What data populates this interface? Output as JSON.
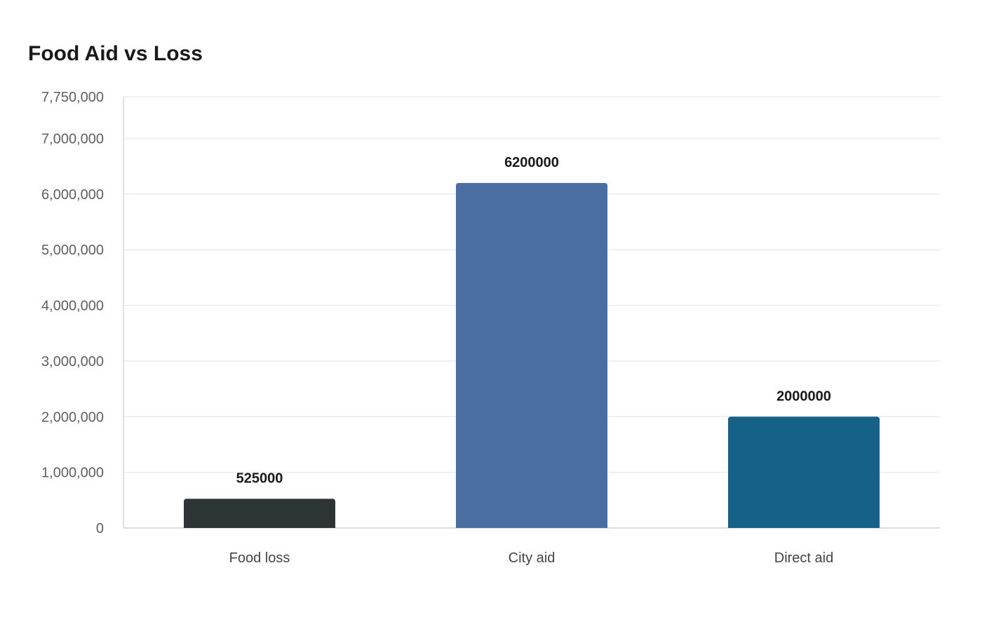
{
  "chart_data": {
    "type": "bar",
    "title": "Food Aid vs Loss",
    "xlabel": "",
    "ylabel": "",
    "categories": [
      "Food loss",
      "City aid",
      "Direct aid"
    ],
    "values": [
      525000,
      6200000,
      2000000
    ],
    "value_labels": [
      "525000",
      "6200000",
      "2000000"
    ],
    "colors": [
      "#2d3436",
      "#4a6ea2",
      "#166188"
    ],
    "ylim": [
      0,
      7750000
    ],
    "yticks": [
      0,
      1000000,
      2000000,
      3000000,
      4000000,
      5000000,
      6000000,
      7000000,
      7750000
    ],
    "ytick_labels": [
      "0",
      "1,000,000",
      "2,000,000",
      "3,000,000",
      "4,000,000",
      "5,000,000",
      "6,000,000",
      "7,000,000",
      "7,750,000"
    ],
    "grid": true,
    "legend": "none"
  }
}
